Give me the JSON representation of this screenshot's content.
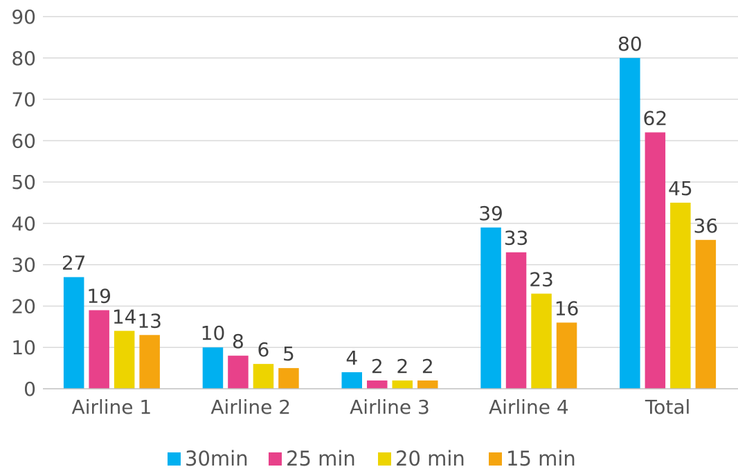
{
  "chart_data": {
    "type": "bar",
    "title": "",
    "xlabel": "",
    "ylabel": "",
    "categories": [
      "Airline 1",
      "Airline 2",
      "Airline 3",
      "Airline 4",
      "Total"
    ],
    "series": [
      {
        "name": "30min",
        "color": "#00b0f0",
        "values": [
          27,
          10,
          4,
          39,
          80
        ]
      },
      {
        "name": "25 min",
        "color": "#e8418a",
        "values": [
          19,
          8,
          2,
          33,
          62
        ]
      },
      {
        "name": "20 min",
        "color": "#edd400",
        "values": [
          14,
          6,
          2,
          23,
          45
        ]
      },
      {
        "name": "15 min",
        "color": "#f5a50f",
        "values": [
          13,
          5,
          2,
          16,
          36
        ]
      }
    ],
    "ylim": [
      0,
      90
    ],
    "yticks": [
      0,
      10,
      20,
      30,
      40,
      50,
      60,
      70,
      80,
      90
    ],
    "grid": true,
    "legend_position": "bottom"
  }
}
